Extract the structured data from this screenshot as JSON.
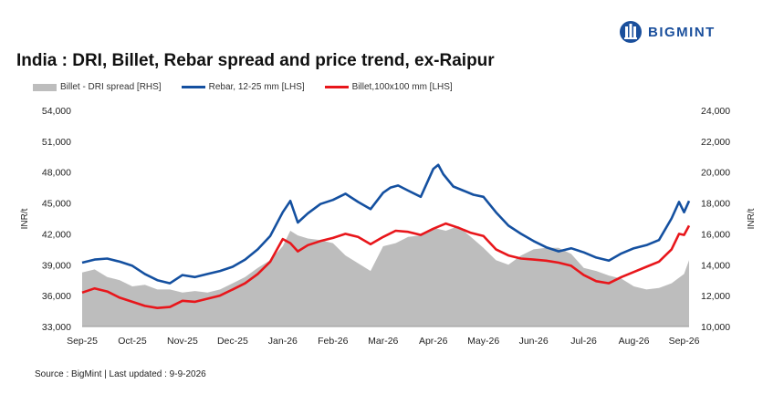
{
  "header": {
    "title": "India : DRI, Billet, Rebar spread and price trend, ex-Raipur",
    "brand": "BIGMINT"
  },
  "footer": {
    "source": "Source : BigMint | Last updated : 9-9-2026"
  },
  "colors": {
    "spread": "#bdbdbd",
    "rebar": "#1450a0",
    "billet": "#e8161b",
    "brand": "#1a4f9c"
  },
  "chart_data": {
    "type": "line",
    "title": "India : DRI, Billet, Rebar spread and price trend, ex-Raipur",
    "legend_position": "top-left",
    "grid": false,
    "y_left": {
      "label": "INR/t",
      "range": [
        33000,
        54000
      ],
      "ticks": [
        "33,000",
        "36,000",
        "39,000",
        "42,000",
        "45,000",
        "48,000",
        "51,000",
        "54,000"
      ]
    },
    "y_right": {
      "label": "INR/t",
      "range": [
        10000,
        24000
      ],
      "ticks": [
        "10,000",
        "12,000",
        "14,000",
        "16,000",
        "18,000",
        "20,000",
        "22,000",
        "24,000"
      ]
    },
    "x_ticks": [
      "Sep-25",
      "Oct-25",
      "Nov-25",
      "Dec-25",
      "Jan-26",
      "Feb-26",
      "Mar-26",
      "Apr-26",
      "May-26",
      "Jun-26",
      "Jul-26",
      "Aug-26",
      "Sep-26"
    ],
    "series": [
      {
        "name": "Billet - DRI spread  [RHS]",
        "type": "area",
        "axis": "right",
        "x": [
          0,
          0.25,
          0.5,
          0.75,
          1.0,
          1.25,
          1.5,
          1.75,
          2.0,
          2.25,
          2.5,
          2.75,
          3.0,
          3.25,
          3.5,
          3.75,
          4.0,
          4.15,
          4.3,
          4.5,
          4.75,
          5.0,
          5.25,
          5.5,
          5.75,
          6.0,
          6.25,
          6.5,
          6.75,
          7.0,
          7.25,
          7.5,
          7.75,
          8.0,
          8.25,
          8.5,
          8.75,
          9.0,
          9.25,
          9.5,
          9.75,
          10.0,
          10.25,
          10.5,
          10.75,
          11.0,
          11.25,
          11.5,
          11.75,
          12.0,
          12.1
        ],
        "values": [
          13.5,
          13.7,
          13.2,
          13.0,
          12.6,
          12.7,
          12.4,
          12.4,
          12.2,
          12.3,
          12.2,
          12.4,
          12.8,
          13.2,
          13.8,
          14.3,
          15.2,
          16.2,
          15.9,
          15.7,
          15.6,
          15.4,
          14.6,
          14.1,
          13.6,
          15.2,
          15.4,
          15.8,
          15.9,
          16.4,
          16.2,
          16.5,
          15.8,
          15.1,
          14.3,
          14.0,
          14.6,
          15.0,
          15.1,
          15.1,
          14.7,
          13.8,
          13.6,
          13.3,
          13.1,
          12.6,
          12.4,
          12.5,
          12.8,
          13.4,
          14.3
        ]
      },
      {
        "name": "Rebar, 12-25 mm [LHS]",
        "type": "line",
        "axis": "left",
        "x": [
          0,
          0.25,
          0.5,
          0.75,
          1.0,
          1.25,
          1.5,
          1.75,
          2.0,
          2.25,
          2.5,
          2.75,
          3.0,
          3.25,
          3.5,
          3.75,
          4.0,
          4.15,
          4.3,
          4.5,
          4.75,
          5.0,
          5.25,
          5.5,
          5.75,
          6.0,
          6.15,
          6.3,
          6.5,
          6.75,
          7.0,
          7.1,
          7.2,
          7.4,
          7.6,
          7.8,
          8.0,
          8.25,
          8.5,
          8.75,
          9.0,
          9.25,
          9.5,
          9.75,
          10.0,
          10.25,
          10.5,
          10.75,
          11.0,
          11.25,
          11.5,
          11.75,
          11.9,
          12.0,
          12.1
        ],
        "values": [
          39200,
          39500,
          39600,
          39300,
          38900,
          38100,
          37500,
          37200,
          38000,
          37800,
          38100,
          38400,
          38800,
          39500,
          40500,
          41800,
          44100,
          45200,
          43100,
          44000,
          44900,
          45300,
          45900,
          45100,
          44400,
          46000,
          46500,
          46700,
          46200,
          45600,
          48300,
          48700,
          47800,
          46600,
          46200,
          45800,
          45600,
          44100,
          42800,
          42000,
          41300,
          40700,
          40300,
          40600,
          40200,
          39700,
          39400,
          40100,
          40600,
          40900,
          41400,
          43500,
          45100,
          44100,
          45200
        ]
      },
      {
        "name": "Billet,100x100 mm [LHS]",
        "type": "line",
        "axis": "left",
        "x": [
          0,
          0.25,
          0.5,
          0.75,
          1.0,
          1.25,
          1.5,
          1.75,
          2.0,
          2.25,
          2.5,
          2.75,
          3.0,
          3.25,
          3.5,
          3.75,
          4.0,
          4.15,
          4.3,
          4.5,
          4.75,
          5.0,
          5.25,
          5.5,
          5.75,
          6.0,
          6.25,
          6.5,
          6.75,
          7.0,
          7.25,
          7.5,
          7.75,
          8.0,
          8.25,
          8.5,
          8.75,
          9.0,
          9.25,
          9.5,
          9.75,
          10.0,
          10.25,
          10.5,
          10.75,
          11.0,
          11.25,
          11.5,
          11.75,
          11.9,
          12.0,
          12.1
        ],
        "values": [
          36300,
          36700,
          36400,
          35800,
          35400,
          35000,
          34800,
          34900,
          35500,
          35400,
          35700,
          36000,
          36600,
          37200,
          38100,
          39300,
          41500,
          41100,
          40300,
          40900,
          41300,
          41600,
          42000,
          41700,
          41000,
          41700,
          42300,
          42200,
          41900,
          42500,
          43000,
          42600,
          42100,
          41800,
          40500,
          39900,
          39600,
          39500,
          39400,
          39200,
          38900,
          38000,
          37400,
          37200,
          37800,
          38300,
          38800,
          39300,
          40500,
          42000,
          41900,
          42800
        ]
      }
    ]
  }
}
